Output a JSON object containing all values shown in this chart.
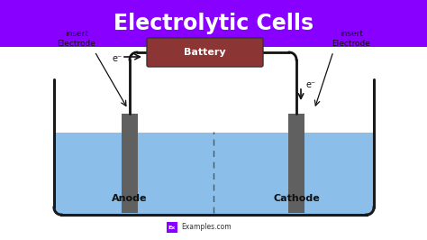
{
  "title": "Electrolytic Cells",
  "title_bg": "#8800FF",
  "title_color": "#FFFFFF",
  "bg_color": "#FFFFFF",
  "cell_outline_color": "#1a1a1a",
  "liquid_color": "#7EB8E8",
  "liquid_alpha": 0.9,
  "electrode_color": "#606060",
  "battery_color": "#8B3535",
  "battery_text": "Battery",
  "battery_text_color": "#FFFFFF",
  "wire_color": "#111111",
  "anode_label": "Anode",
  "cathode_label": "Cathode",
  "insert_electrode_left": "insert\nElectrode",
  "insert_electrode_right": "insert\nElectrode",
  "electron_label": "e⁻",
  "dashed_line_color": "#555555",
  "label_color": "#111111",
  "footer_ex_bg": "#8800FF",
  "footer_text": "Examples.com",
  "title_fontsize": 17,
  "label_fontsize": 8,
  "small_fontsize": 6.5
}
